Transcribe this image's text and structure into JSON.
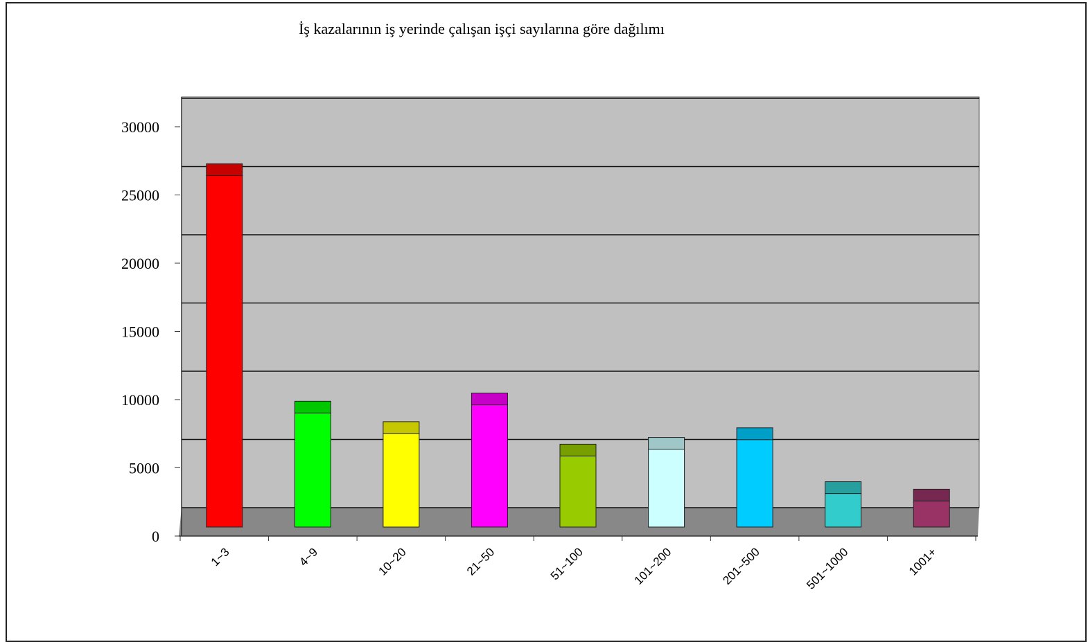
{
  "chart_data": {
    "type": "bar3d",
    "title": "İş kazalarının iş yerinde çalışan işçi sayılarına göre dağılımı",
    "categories": [
      "1~3",
      "4~9",
      "10~20",
      "21~50",
      "51~100",
      "101~200",
      "201~500",
      "501~1000",
      "1001+"
    ],
    "values": [
      25200,
      7800,
      6300,
      8400,
      4650,
      5150,
      5850,
      1900,
      1350
    ],
    "colors": [
      "#ff0000",
      "#00ff00",
      "#ffff00",
      "#ff00ff",
      "#99cc00",
      "#ccffff",
      "#00ccff",
      "#33cccc",
      "#993366"
    ],
    "ylim": [
      0,
      30000
    ],
    "yticks": [
      0,
      5000,
      10000,
      15000,
      20000,
      25000,
      30000
    ],
    "grid": true
  }
}
